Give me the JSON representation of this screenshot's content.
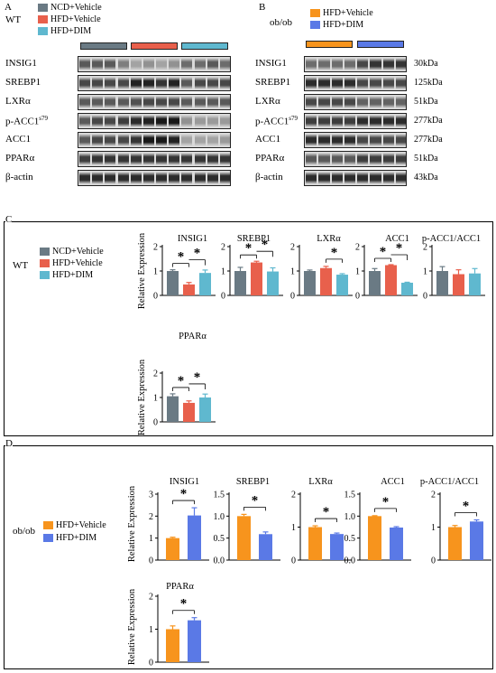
{
  "colors": {
    "ncd": "#6a7a84",
    "hfd": "#e8604c",
    "dim": "#5fb8cf",
    "hfd_ob": "#f7941d",
    "dim_ob": "#5a79e6"
  },
  "panelA": {
    "letter": "A",
    "strain": "WT",
    "legend": [
      "NCD+Vehicle",
      "HFD+Vehicle",
      "HFD+DIM"
    ],
    "proteins": [
      "INSIG1",
      "SREBP1",
      "LXRα",
      "p-ACC1",
      "ACC1",
      "PPARα",
      "β-actin"
    ],
    "phospho_sup": "s79"
  },
  "panelB": {
    "letter": "B",
    "strain": "ob/ob",
    "legend": [
      "HFD+Vehicle",
      "HFD+DIM"
    ],
    "proteins": [
      "INSIG1",
      "SREBP1",
      "LXRα",
      "p-ACC1",
      "ACC1",
      "PPARα",
      "β-actin"
    ],
    "phospho_sup": "s79",
    "sizes": [
      "30kDa",
      "125kDa",
      "51kDa",
      "277kDa",
      "277kDa",
      "51kDa",
      "43kDa"
    ]
  },
  "panelC": {
    "letter": "C",
    "strain": "WT",
    "legend": [
      "NCD+Vehicle",
      "HFD+Vehicle",
      "HFD+DIM"
    ],
    "ylabel": "Relative Expression",
    "star": "*"
  },
  "panelD": {
    "letter": "D",
    "strain": "ob/ob",
    "legend": [
      "HFD+Vehicle",
      "HFD+DIM"
    ],
    "ylabel": "Relative Expression",
    "star": "*"
  },
  "chart_data": [
    {
      "panel": "C",
      "type": "bar",
      "title": "INSIG1",
      "categories": [
        "NCD+Vehicle",
        "HFD+Vehicle",
        "HFD+DIM"
      ],
      "values": [
        1.0,
        0.45,
        0.92
      ],
      "errors": [
        0.05,
        0.08,
        0.12
      ],
      "yticks": [
        0,
        1,
        2
      ],
      "ylim": [
        0,
        2
      ],
      "significance": [
        "*",
        "*"
      ]
    },
    {
      "panel": "C",
      "type": "bar",
      "title": "SREBP1",
      "categories": [
        "NCD+Vehicle",
        "HFD+Vehicle",
        "HFD+DIM"
      ],
      "values": [
        1.0,
        1.35,
        0.98
      ],
      "errors": [
        0.15,
        0.05,
        0.15
      ],
      "yticks": [
        0,
        1,
        2
      ],
      "ylim": [
        0,
        2
      ],
      "significance": [
        "*",
        "*"
      ]
    },
    {
      "panel": "C",
      "type": "bar",
      "title": "LXRα",
      "categories": [
        "NCD+Vehicle",
        "HFD+Vehicle",
        "HFD+DIM"
      ],
      "values": [
        1.0,
        1.12,
        0.85
      ],
      "errors": [
        0.04,
        0.07,
        0.04
      ],
      "yticks": [
        0,
        1,
        2
      ],
      "ylim": [
        0,
        2
      ],
      "significance": [
        "*"
      ]
    },
    {
      "panel": "C",
      "type": "bar",
      "title": "ACC1",
      "categories": [
        "NCD+Vehicle",
        "HFD+Vehicle",
        "HFD+DIM"
      ],
      "values": [
        1.0,
        1.24,
        0.52
      ],
      "errors": [
        0.1,
        0.02,
        0.02
      ],
      "yticks": [
        0,
        1,
        2
      ],
      "ylim": [
        0,
        2
      ],
      "significance": [
        "*",
        "*"
      ]
    },
    {
      "panel": "C",
      "type": "bar",
      "title": "p-ACC1/ACC1",
      "categories": [
        "NCD+Vehicle",
        "HFD+Vehicle",
        "HFD+DIM"
      ],
      "values": [
        1.0,
        0.87,
        0.9
      ],
      "errors": [
        0.18,
        0.18,
        0.2
      ],
      "yticks": [
        0,
        1,
        2
      ],
      "ylim": [
        0,
        2
      ],
      "significance": []
    },
    {
      "panel": "C",
      "type": "bar",
      "title": "PPARα",
      "categories": [
        "NCD+Vehicle",
        "HFD+Vehicle",
        "HFD+DIM"
      ],
      "values": [
        1.05,
        0.78,
        1.0
      ],
      "errors": [
        0.1,
        0.08,
        0.14
      ],
      "yticks": [
        0,
        1,
        2
      ],
      "ylim": [
        0,
        2
      ],
      "significance": [
        "*",
        "*"
      ]
    },
    {
      "panel": "D",
      "type": "bar",
      "title": "INSIG1",
      "categories": [
        "HFD+Vehicle",
        "HFD+DIM"
      ],
      "values": [
        1.0,
        2.03
      ],
      "errors": [
        0.04,
        0.35
      ],
      "yticks": [
        0,
        1,
        2,
        3
      ],
      "ylim": [
        0,
        3
      ],
      "significance": [
        "*"
      ]
    },
    {
      "panel": "D",
      "type": "bar",
      "title": "SREBP1",
      "categories": [
        "HFD+Vehicle",
        "HFD+DIM"
      ],
      "values": [
        1.0,
        0.59
      ],
      "errors": [
        0.04,
        0.05
      ],
      "yticks": [
        "0.0",
        "0.5",
        "1.0",
        "1.5"
      ],
      "ylim": [
        0,
        1.5
      ],
      "significance": [
        "*"
      ]
    },
    {
      "panel": "D",
      "type": "bar",
      "title": "LXRα",
      "categories": [
        "HFD+Vehicle",
        "HFD+DIM"
      ],
      "values": [
        1.0,
        0.79
      ],
      "errors": [
        0.04,
        0.03
      ],
      "yticks": [
        0,
        1,
        2
      ],
      "ylim": [
        0,
        2
      ],
      "significance": [
        "*"
      ]
    },
    {
      "panel": "D",
      "type": "bar",
      "title": "ACC1",
      "categories": [
        "HFD+Vehicle",
        "HFD+DIM"
      ],
      "values": [
        1.0,
        0.74
      ],
      "errors": [
        0.01,
        0.02
      ],
      "yticks": [
        "0.0",
        "0.5",
        "1.0",
        "1.5"
      ],
      "ylim": [
        0,
        1.5
      ],
      "significance": [
        "*"
      ]
    },
    {
      "panel": "D",
      "type": "bar",
      "title": "p-ACC1/ACC1",
      "categories": [
        "HFD+Vehicle",
        "HFD+DIM"
      ],
      "values": [
        1.0,
        1.17
      ],
      "errors": [
        0.05,
        0.05
      ],
      "yticks": [
        0,
        1,
        2
      ],
      "ylim": [
        0,
        2
      ],
      "significance": [
        "*"
      ]
    },
    {
      "panel": "D",
      "type": "bar",
      "title": "PPARα",
      "categories": [
        "HFD+Vehicle",
        "HFD+DIM"
      ],
      "values": [
        1.0,
        1.27
      ],
      "errors": [
        0.1,
        0.08
      ],
      "yticks": [
        0,
        1,
        2
      ],
      "ylim": [
        0,
        2
      ],
      "significance": [
        "*"
      ]
    }
  ]
}
